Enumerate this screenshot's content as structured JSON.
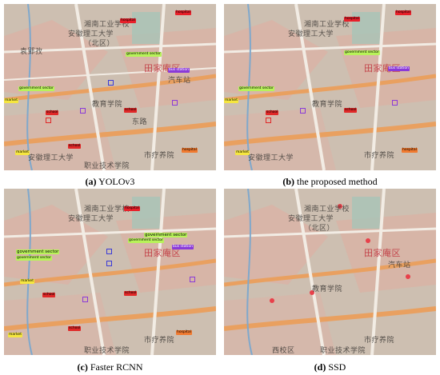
{
  "captions": [
    {
      "letter": "(a)",
      "text": " YOLOv3"
    },
    {
      "letter": "(b)",
      "text": " the proposed method"
    },
    {
      "letter": "(c)",
      "text": " Faster RCNN"
    },
    {
      "letter": "(d)",
      "text": " SSD"
    }
  ],
  "map_labels": {
    "lbl1": "湘南工业学校",
    "lbl2": "安徽理工大学",
    "lbl3": "（北区）",
    "lbl4": "田家庵区",
    "lbl5": "市疗养院",
    "lbl6": "安徽理工大学",
    "lbl7": "西校区",
    "lbl8": "职业技术学院",
    "lbl9": "教育学院",
    "lbl10": "袁郢孜",
    "lbl11": "汽车站",
    "lbl12": "东路"
  },
  "detections": {
    "hospital": "hospital",
    "government": "government sector",
    "market": "market",
    "school": "school",
    "bus": "bus station"
  },
  "colors": {
    "hospital_red": "#e8202a",
    "hospital_orange": "#f07a30",
    "government_green": "#b8f25a",
    "market_yellow": "#f5e640",
    "school_red": "#e02828",
    "bus_purple": "#8a3ad8",
    "ssd_red": "#e8404a",
    "road_orange": "#e9a060",
    "road_white": "#f2ece4",
    "map_bg": "#cfc2b4",
    "map_block_pink": "#dfb3a6"
  }
}
